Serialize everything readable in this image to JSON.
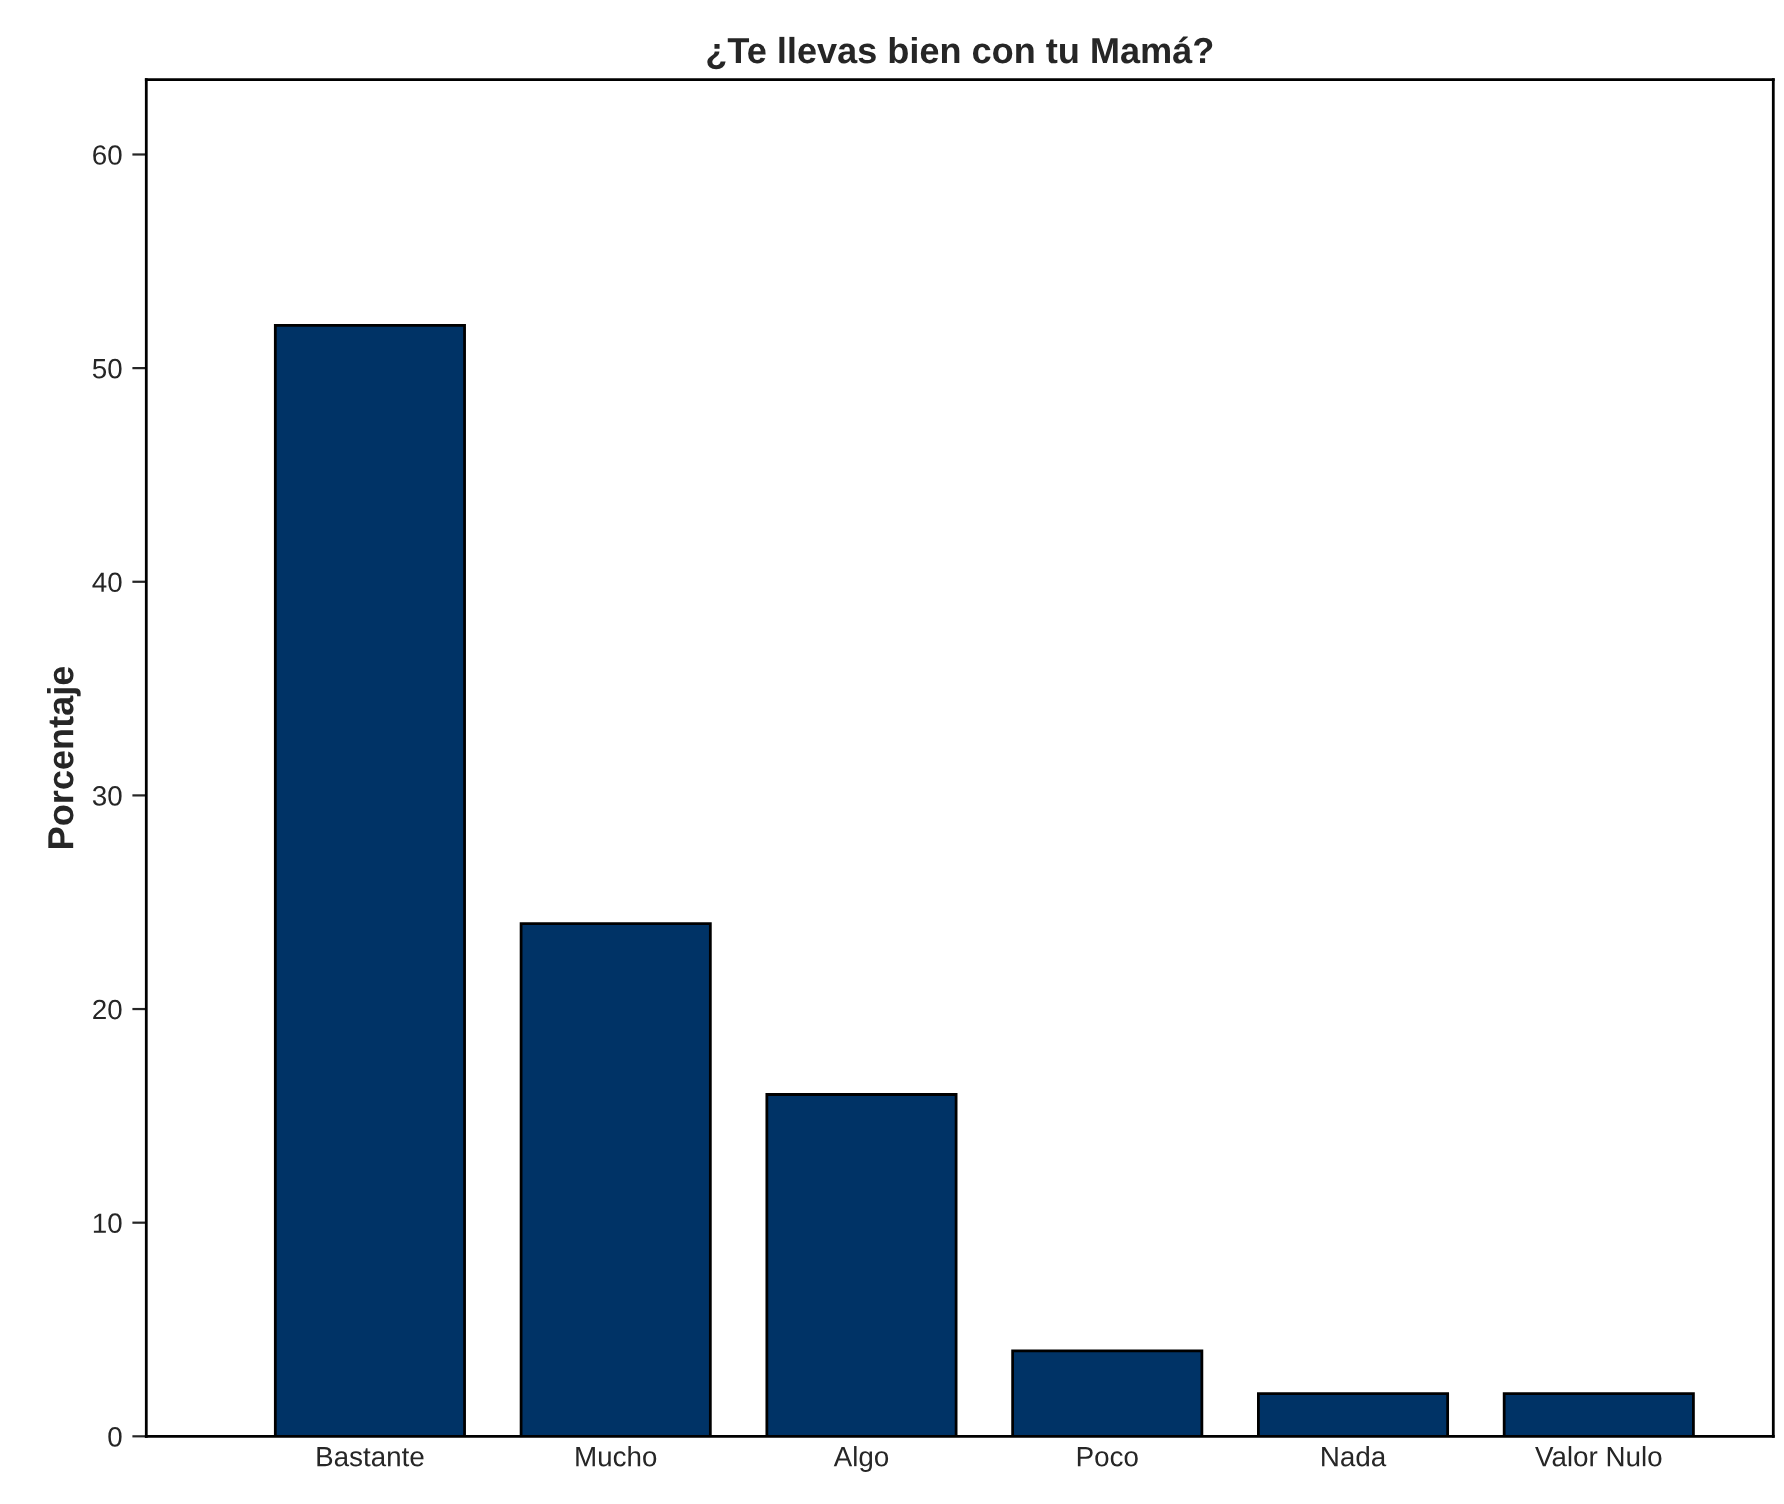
{
  "chart_data": {
    "type": "bar",
    "title": "¿Te llevas bien con tu Mamá?",
    "ylabel": "Porcentaje",
    "categories": [
      "Bastante",
      "Mucho",
      "Algo",
      "Poco",
      "Nada",
      "Valor Nulo"
    ],
    "values": [
      52,
      24,
      16,
      4,
      2,
      2
    ],
    "color": "#003366",
    "ylim": [
      0,
      63.5
    ],
    "yticks": [
      0,
      10,
      20,
      30,
      40,
      50,
      60
    ],
    "grid": false
  }
}
